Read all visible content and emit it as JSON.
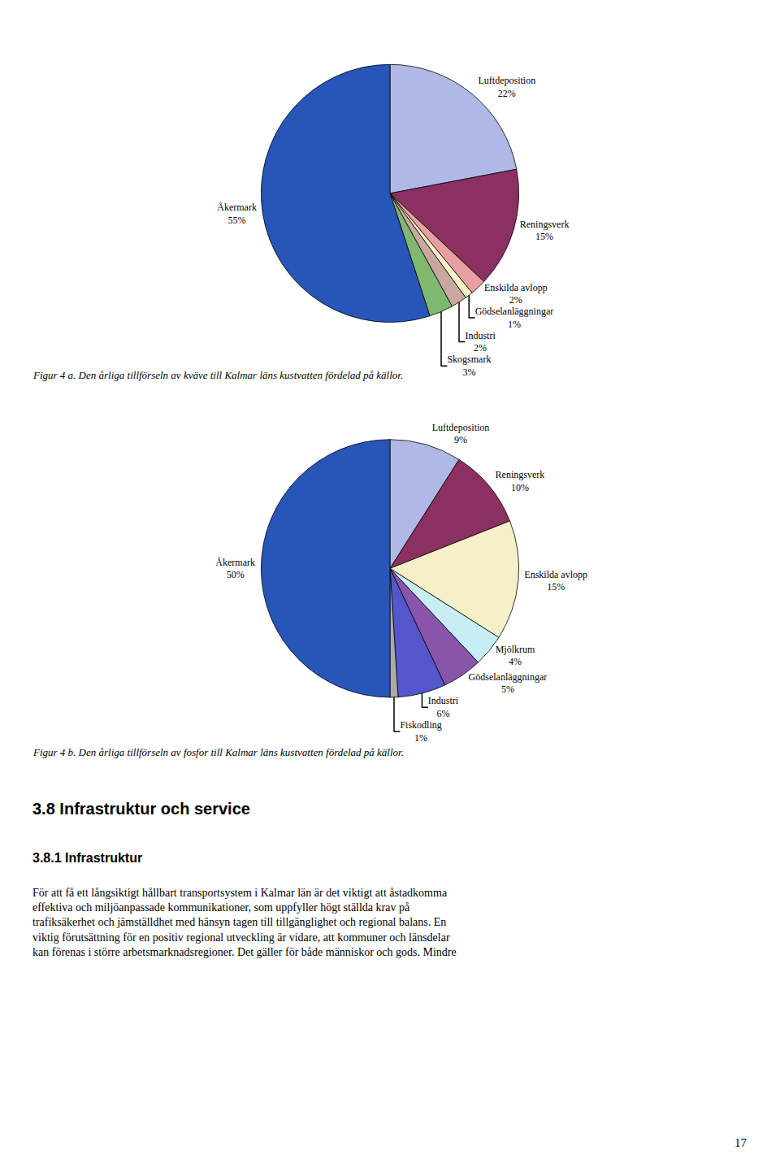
{
  "chart_data": [
    {
      "type": "pie",
      "title": "Figur 4 a. Den årliga tillförseln av kväve till Kalmar läns kustvatten fördelad på källor.",
      "categories": [
        "Luftdeposition",
        "Reningsverk",
        "Enskilda avlopp",
        "Gödselanläggningar",
        "Industri",
        "Skogsmark",
        "Åkermark"
      ],
      "values": [
        22,
        15,
        2,
        1,
        2,
        3,
        55
      ],
      "value_labels": [
        "22%",
        "15%",
        "2%",
        "1%",
        "2%",
        "3%",
        "55%"
      ],
      "colors": [
        "#b0b8e8",
        "#8b3060",
        "#e8a0a0",
        "#f5f0c8",
        "#c8a8a0",
        "#80b870",
        "#2855b8"
      ],
      "data_labels": true
    },
    {
      "type": "pie",
      "title": "Figur 4 b. Den årliga tillförseln av fosfor till Kalmar läns kustvatten fördelad på källor.",
      "categories": [
        "Luftdeposition",
        "Reningsverk",
        "Enskilda avlopp",
        "Mjölkrum",
        "Gödselanläggningar",
        "Industri",
        "Fiskodling",
        "Åkermark"
      ],
      "values": [
        9,
        10,
        15,
        4,
        5,
        6,
        1,
        50
      ],
      "value_labels": [
        "9%",
        "10%",
        "15%",
        "4%",
        "5%",
        "6%",
        "1%",
        "50%"
      ],
      "colors": [
        "#b0b8e8",
        "#8b3060",
        "#f5f0c8",
        "#c8eef5",
        "#8855aa",
        "#5555cc",
        "#aaaaaa",
        "#2855b8"
      ],
      "data_labels": true
    }
  ],
  "heading": "3.8 Infrastruktur och service",
  "subheading": "3.8.1 Infrastruktur",
  "body": [
    "För att få ett långsiktigt hållbart transportsystem i Kalmar län är det viktigt att åstadkomma",
    "effektiva och miljöanpassade kommunikationer, som uppfyller högt ställda krav på",
    "trafiksäkerhet och jämställdhet med hänsyn tagen till tillgänglighet och regional balans. En",
    "viktig förutsättning för en positiv regional utveckling är vidare, att kommuner och länsdelar",
    "kan förenas i större arbetsmarknadsregioner. Det gäller för både människor och gods. Mindre"
  ],
  "page_number": "17"
}
